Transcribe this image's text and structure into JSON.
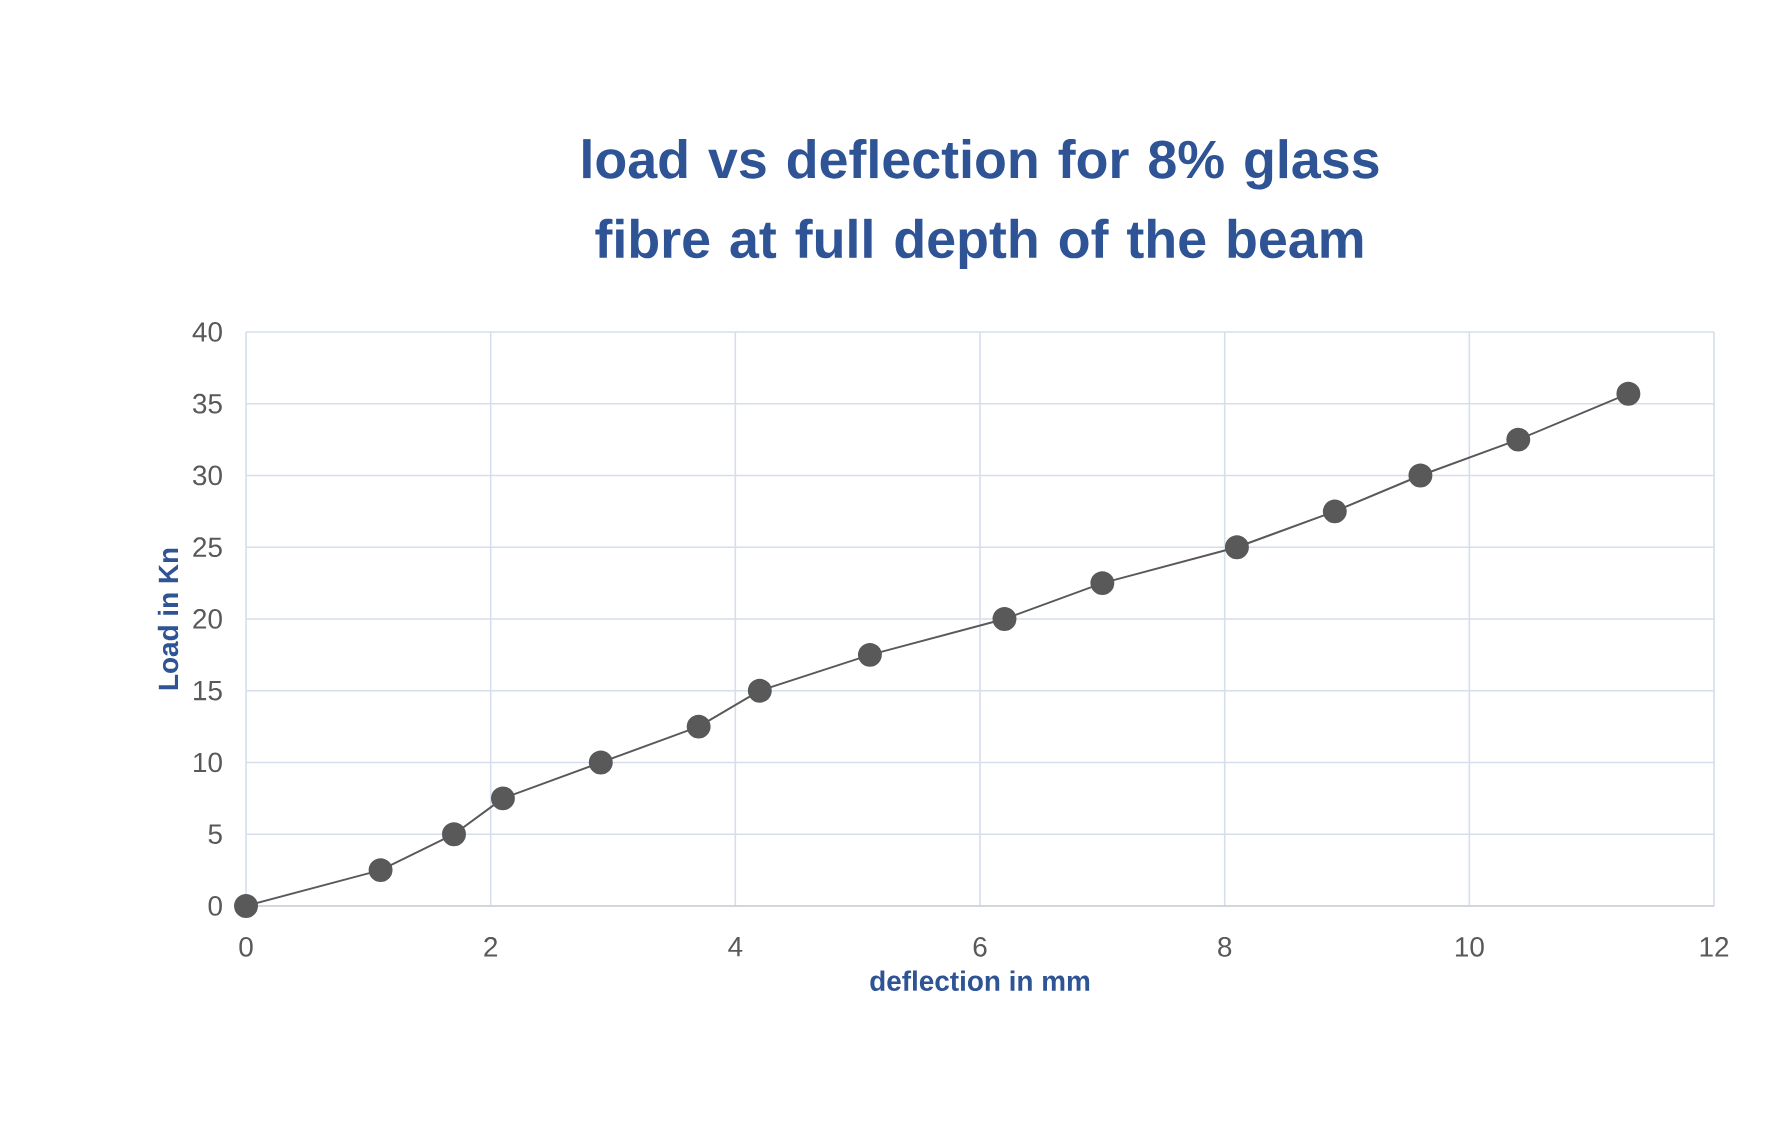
{
  "chart_data": {
    "type": "line",
    "title": "load vs deflection for 8% glass fibre at full depth of  the beam",
    "xlabel": "deflection in mm",
    "ylabel": "Load in Kn",
    "x": [
      0,
      1.1,
      1.7,
      2.1,
      2.9,
      3.7,
      4.2,
      5.1,
      6.2,
      7.0,
      8.1,
      8.9,
      9.6,
      10.4,
      11.3
    ],
    "series": [
      {
        "color": "#595959",
        "values": [
          0,
          2.5,
          5,
          7.5,
          10,
          12.5,
          15,
          17.5,
          20,
          22.5,
          25,
          27.5,
          30,
          32.5,
          35.7
        ]
      }
    ],
    "xlim": [
      0,
      12
    ],
    "ylim": [
      0,
      40
    ],
    "xticks": [
      0,
      2,
      4,
      6,
      8,
      10,
      12
    ],
    "yticks": [
      0,
      5,
      10,
      15,
      20,
      25,
      30,
      35,
      40
    ],
    "grid": true,
    "marker": "circle",
    "line_style": "solid"
  }
}
